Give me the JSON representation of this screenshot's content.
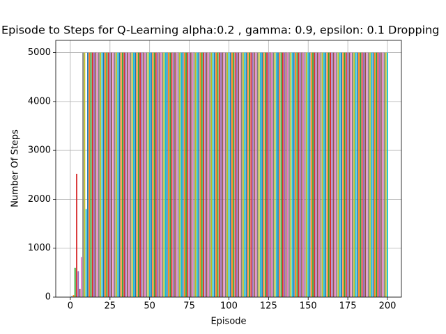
{
  "chart_data": {
    "type": "bar",
    "title": "Episode to Steps for Q-Learning alpha:0.2 , gamma: 0.9, epsilon: 0.1 Dropping",
    "xlabel": "Episode",
    "ylabel": "Number Of Steps",
    "x": [
      1,
      2,
      3,
      4,
      5,
      6,
      7,
      8,
      9,
      10,
      11,
      12,
      13,
      14,
      15,
      16,
      17,
      18,
      19,
      20,
      21,
      22,
      23,
      24,
      25,
      26,
      27,
      28,
      29,
      30,
      31,
      32,
      33,
      34,
      35,
      36,
      37,
      38,
      39,
      40,
      41,
      42,
      43,
      44,
      45,
      46,
      47,
      48,
      49,
      50,
      51,
      52,
      53,
      54,
      55,
      56,
      57,
      58,
      59,
      60,
      61,
      62,
      63,
      64,
      65,
      66,
      67,
      68,
      69,
      70,
      71,
      72,
      73,
      74,
      75,
      76,
      77,
      78,
      79,
      80,
      81,
      82,
      83,
      84,
      85,
      86,
      87,
      88,
      89,
      90,
      91,
      92,
      93,
      94,
      95,
      96,
      97,
      98,
      99,
      100,
      101,
      102,
      103,
      104,
      105,
      106,
      107,
      108,
      109,
      110,
      111,
      112,
      113,
      114,
      115,
      116,
      117,
      118,
      119,
      120,
      121,
      122,
      123,
      124,
      125,
      126,
      127,
      128,
      129,
      130,
      131,
      132,
      133,
      134,
      135,
      136,
      137,
      138,
      139,
      140,
      141,
      142,
      143,
      144,
      145,
      146,
      147,
      148,
      149,
      150,
      151,
      152,
      153,
      154,
      155,
      156,
      157,
      158,
      159,
      160,
      161,
      162,
      163,
      164,
      165,
      166,
      167,
      168,
      169,
      170,
      171,
      172,
      173,
      174,
      175,
      176,
      177,
      178,
      179,
      180,
      181,
      182,
      183,
      184,
      185,
      186,
      187,
      188,
      189,
      190,
      191,
      192,
      193,
      194,
      195,
      196,
      197,
      198,
      199,
      200
    ],
    "values": [
      20,
      40,
      600,
      2520,
      530,
      170,
      820,
      5000,
      5000,
      1800,
      5000,
      5000,
      5000,
      5000,
      5000,
      5000,
      5000,
      5000,
      5000,
      5000,
      5000,
      5000,
      5000,
      5000,
      5000,
      5000,
      5000,
      5000,
      5000,
      5000,
      5000,
      5000,
      5000,
      5000,
      5000,
      5000,
      5000,
      5000,
      5000,
      5000,
      5000,
      5000,
      5000,
      5000,
      5000,
      5000,
      5000,
      5000,
      5000,
      5000,
      5000,
      5000,
      5000,
      5000,
      5000,
      5000,
      5000,
      5000,
      5000,
      5000,
      5000,
      5000,
      5000,
      5000,
      5000,
      5000,
      5000,
      5000,
      5000,
      5000,
      5000,
      5000,
      5000,
      5000,
      5000,
      5000,
      5000,
      5000,
      5000,
      5000,
      5000,
      5000,
      5000,
      5000,
      5000,
      5000,
      5000,
      5000,
      5000,
      5000,
      5000,
      5000,
      5000,
      5000,
      5000,
      5000,
      5000,
      5000,
      5000,
      5000,
      5000,
      5000,
      5000,
      5000,
      5000,
      5000,
      5000,
      5000,
      5000,
      5000,
      5000,
      5000,
      5000,
      5000,
      5000,
      5000,
      5000,
      5000,
      5000,
      5000,
      5000,
      5000,
      5000,
      5000,
      5000,
      5000,
      5000,
      5000,
      5000,
      5000,
      5000,
      5000,
      5000,
      5000,
      5000,
      5000,
      5000,
      5000,
      5000,
      5000,
      5000,
      5000,
      5000,
      5000,
      5000,
      5000,
      5000,
      5000,
      5000,
      5000,
      5000,
      5000,
      5000,
      5000,
      5000,
      5000,
      5000,
      5000,
      5000,
      5000,
      5000,
      5000,
      5000,
      5000,
      5000,
      5000,
      5000,
      5000,
      5000,
      5000,
      5000,
      5000,
      5000,
      5000,
      5000,
      5000,
      5000,
      5000,
      5000,
      5000,
      5000,
      5000,
      5000,
      5000,
      5000,
      5000,
      5000,
      5000,
      5000,
      5000,
      5000,
      5000,
      5000,
      5000,
      5000,
      5000,
      5000,
      5000,
      5000,
      5000
    ],
    "colors": [
      "#1f77b4",
      "#ff7f0e",
      "#2ca02c",
      "#d62728",
      "#9467bd",
      "#8c564b",
      "#e377c2",
      "#7f7f7f",
      "#bcbd22",
      "#17becf"
    ],
    "xlim": [
      -9.2,
      208.8
    ],
    "xticks": [
      0,
      25,
      50,
      75,
      100,
      125,
      150,
      175,
      200
    ],
    "ylim": [
      0,
      5250
    ],
    "yticks": [
      0,
      1000,
      2000,
      3000,
      4000,
      5000
    ],
    "grid": true
  }
}
